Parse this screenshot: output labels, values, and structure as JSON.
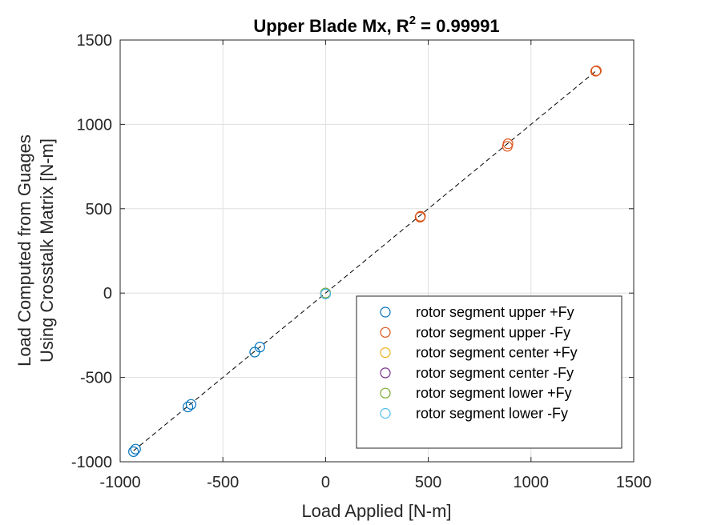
{
  "chart_data": {
    "type": "scatter",
    "title": "Upper Blade Mx, R",
    "title_sup": "2",
    "title_suffix": " = 0.99991",
    "xlabel": "Load Applied [N-m]",
    "ylabel_line1": "Load Computed from Guages",
    "ylabel_line2": "Using Crosstalk Matrix [N-m]",
    "xlim": [
      -1000,
      1500
    ],
    "ylim": [
      -1000,
      1500
    ],
    "xticks": [
      -1000,
      -500,
      0,
      500,
      1000,
      1500
    ],
    "yticks": [
      -1000,
      -500,
      0,
      500,
      1000,
      1500
    ],
    "xtick_labels": [
      "-1000",
      "-500",
      "0",
      "500",
      "1000",
      "1500"
    ],
    "ytick_labels": [
      "-1000",
      "-500",
      "0",
      "500",
      "1000",
      "1500"
    ],
    "grid": true,
    "legend_position": "bottom-right",
    "fit_line": {
      "x": [
        -935,
        1315
      ],
      "y": [
        -935,
        1315
      ],
      "style": "dashed",
      "color": "#000000"
    },
    "series": [
      {
        "name": "rotor segment upper +Fy",
        "color": "#0072BD",
        "x": [
          -935,
          -925,
          -670,
          -655,
          -345,
          -320,
          0
        ],
        "y": [
          -940,
          -925,
          -675,
          -660,
          -350,
          -320,
          -5
        ]
      },
      {
        "name": "rotor segment upper -Fy",
        "color": "#D95319",
        "x": [
          0,
          460,
          462,
          885,
          888,
          1315,
          1318
        ],
        "y": [
          0,
          450,
          455,
          870,
          885,
          1315,
          1318
        ]
      },
      {
        "name": "rotor segment center +Fy",
        "color": "#EDB120",
        "x": [
          0
        ],
        "y": [
          0
        ]
      },
      {
        "name": "rotor segment center -Fy",
        "color": "#7E2F8E",
        "x": [
          0
        ],
        "y": [
          0
        ]
      },
      {
        "name": "rotor segment lower +Fy",
        "color": "#77AC30",
        "x": [
          0
        ],
        "y": [
          0
        ]
      },
      {
        "name": "rotor segment lower -Fy",
        "color": "#4DBEEE",
        "x": [
          0
        ],
        "y": [
          -5
        ]
      }
    ]
  }
}
